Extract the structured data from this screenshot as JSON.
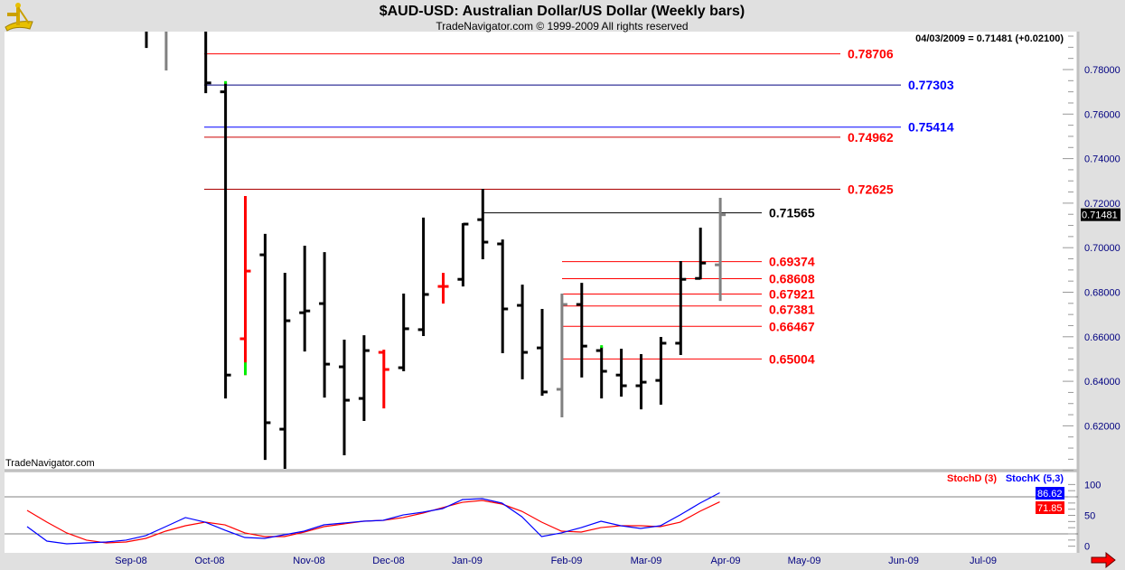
{
  "header": {
    "title": "$AUD-USD:  Australian Dollar/US Dollar  (Weekly bars)",
    "copyright": "TradeNavigator.com © 1999-2009 All rights reserved",
    "quote": "04/03/2009 = 0.71481 (+0.02100)",
    "watermark": "TradeNavigator.com",
    "logo": "sextant-logo-icon"
  },
  "colors": {
    "up_bar": "#000000",
    "red_bar": "#ff0000",
    "gray_bar": "#808080",
    "marker": "#00ee00",
    "stochK": "#0000ff",
    "stochD": "#ff0000",
    "axis_text": "#000080",
    "blue_level": "#0000ff",
    "red_level": "#ff0000"
  },
  "chart_data": [
    {
      "type": "ohlc",
      "title": "$AUD-USD:  Australian Dollar/US Dollar  (Weekly bars)",
      "ylim": [
        0.597,
        0.797
      ],
      "yticks": [
        "0.62000",
        "0.64000",
        "0.66000",
        "0.68000",
        "0.70000",
        "0.72000",
        "0.74000",
        "0.76000",
        "0.78000"
      ],
      "xtick_labels": [
        "Sep-08",
        "Oct-08",
        "Nov-08",
        "Dec-08",
        "Jan-09",
        "Feb-09",
        "Mar-09",
        "Apr-09",
        "May-09",
        "Jun-09",
        "Jul-09"
      ],
      "last_price": "0.71481",
      "bars": [
        {
          "o": 0.805,
          "h": 0.81,
          "l": 0.7897,
          "c": 0.8,
          "color": "black"
        },
        {
          "o": 0.8,
          "h": 0.805,
          "l": 0.7796,
          "c": 0.8,
          "color": "gray"
        },
        {
          "o": 0.81,
          "h": 0.815,
          "l": 0.798,
          "c": 0.805,
          "color": "black"
        },
        {
          "o": 0.8,
          "h": 0.81,
          "l": 0.7694,
          "c": 0.774,
          "color": "black"
        },
        {
          "o": 0.77,
          "h": 0.774,
          "l": 0.6323,
          "c": 0.6428,
          "color": "black",
          "marker": "high"
        },
        {
          "o": 0.6591,
          "h": 0.7232,
          "l": 0.6428,
          "c": 0.6895,
          "color": "red",
          "marker": "low"
        },
        {
          "o": 0.6968,
          "h": 0.7062,
          "l": 0.6047,
          "c": 0.6214,
          "color": "black"
        },
        {
          "o": 0.6185,
          "h": 0.6887,
          "l": 0.6006,
          "c": 0.6672,
          "color": "black"
        },
        {
          "o": 0.6708,
          "h": 0.7009,
          "l": 0.6534,
          "c": 0.6716,
          "color": "black"
        },
        {
          "o": 0.6749,
          "h": 0.698,
          "l": 0.6327,
          "c": 0.6477,
          "color": "black"
        },
        {
          "o": 0.6465,
          "h": 0.6587,
          "l": 0.6068,
          "c": 0.6315,
          "color": "black"
        },
        {
          "o": 0.6323,
          "h": 0.6607,
          "l": 0.6222,
          "c": 0.6538,
          "color": "black"
        },
        {
          "o": 0.653,
          "h": 0.6542,
          "l": 0.6278,
          "c": 0.6453,
          "color": "red"
        },
        {
          "o": 0.6461,
          "h": 0.6794,
          "l": 0.6445,
          "c": 0.6636,
          "color": "black"
        },
        {
          "o": 0.6632,
          "h": 0.7135,
          "l": 0.6603,
          "c": 0.679,
          "color": "black"
        },
        {
          "o": 0.6826,
          "h": 0.6887,
          "l": 0.6749,
          "c": 0.6826,
          "color": "red"
        },
        {
          "o": 0.6858,
          "h": 0.711,
          "l": 0.6826,
          "c": 0.7106,
          "color": "black"
        },
        {
          "o": 0.7126,
          "h": 0.7264,
          "l": 0.6948,
          "c": 0.7025,
          "color": "black"
        },
        {
          "o": 0.7017,
          "h": 0.7037,
          "l": 0.6526,
          "c": 0.6725,
          "color": "black"
        },
        {
          "o": 0.6741,
          "h": 0.6834,
          "l": 0.6409,
          "c": 0.653,
          "color": "black"
        },
        {
          "o": 0.655,
          "h": 0.6725,
          "l": 0.6335,
          "c": 0.6352,
          "color": "black"
        },
        {
          "o": 0.6364,
          "h": 0.6794,
          "l": 0.6238,
          "c": 0.6745,
          "color": "gray"
        },
        {
          "o": 0.6745,
          "h": 0.6842,
          "l": 0.6417,
          "c": 0.6558,
          "color": "black"
        },
        {
          "o": 0.6538,
          "h": 0.6554,
          "l": 0.6323,
          "c": 0.6445,
          "color": "black",
          "marker": "high"
        },
        {
          "o": 0.6428,
          "h": 0.6546,
          "l": 0.6331,
          "c": 0.638,
          "color": "black"
        },
        {
          "o": 0.638,
          "h": 0.6522,
          "l": 0.6274,
          "c": 0.6396,
          "color": "black"
        },
        {
          "o": 0.6404,
          "h": 0.6599,
          "l": 0.6295,
          "c": 0.6571,
          "color": "black"
        },
        {
          "o": 0.6571,
          "h": 0.694,
          "l": 0.6518,
          "c": 0.6858,
          "color": "black"
        },
        {
          "o": 0.6862,
          "h": 0.709,
          "l": 0.6858,
          "c": 0.6931,
          "color": "black"
        },
        {
          "o": 0.6923,
          "h": 0.7224,
          "l": 0.6761,
          "c": 0.71481,
          "color": "gray"
        }
      ],
      "levels": [
        {
          "label": "0.78706",
          "value": 0.78706,
          "color": "#ff0000",
          "label_color": "#ff0000"
        },
        {
          "label": "0.77303",
          "value": 0.77303,
          "color": "#000080",
          "label_color": "#0000ff"
        },
        {
          "label": "0.75414",
          "value": 0.75414,
          "color": "#0000ff",
          "label_color": "#0000ff"
        },
        {
          "label": "0.74962",
          "value": 0.74962,
          "color": "#cc0000",
          "label_color": "#ff0000"
        },
        {
          "label": "0.72625",
          "value": 0.72625,
          "color": "#aa0000",
          "label_color": "#ff0000"
        },
        {
          "label": "0.71565",
          "value": 0.71565,
          "color": "#000000",
          "label_color": "#000000"
        },
        {
          "label": "0.69374",
          "value": 0.69374,
          "color": "#ff0000",
          "label_color": "#ff0000"
        },
        {
          "label": "0.68608",
          "value": 0.68608,
          "color": "#ff0000",
          "label_color": "#ff0000"
        },
        {
          "label": "0.67921",
          "value": 0.67921,
          "color": "#ff0000",
          "label_color": "#ff0000"
        },
        {
          "label": "0.67381",
          "value": 0.67381,
          "color": "#ff0000",
          "label_color": "#ff0000"
        },
        {
          "label": "0.66467",
          "value": 0.66467,
          "color": "#ff0000",
          "label_color": "#ff0000"
        },
        {
          "label": "0.65004",
          "value": 0.65004,
          "color": "#ff0000",
          "label_color": "#ff0000"
        }
      ]
    },
    {
      "type": "line",
      "ylim": [
        0,
        100
      ],
      "yticks": [
        "0",
        "50",
        "100"
      ],
      "reference_lines": [
        20,
        80
      ],
      "legend": [
        "StochD (3)",
        "StochK (5,3)"
      ],
      "legend_placement": "top-right",
      "series": [
        {
          "name": "StochK (5,3)",
          "last": "86.62",
          "values": [
            31.7,
            8.3,
            3.9,
            5.4,
            6.8,
            9.8,
            17.1,
            31.7,
            46.4,
            39,
            25.9,
            14.1,
            12.7,
            18.5,
            24.4,
            34.6,
            37.6,
            40.5,
            42,
            50.7,
            55.1,
            61,
            75.6,
            77.1,
            69.8,
            47.8,
            15.6,
            21.5,
            30.2,
            40.5,
            33.2,
            28.8,
            33.2,
            50.7,
            69.8,
            86.62
          ]
        },
        {
          "name": "StochD (3)",
          "last": "71.85",
          "values": [
            58.1,
            39,
            21.5,
            9.8,
            5.4,
            6.8,
            12.7,
            24.4,
            33.2,
            39,
            34.6,
            21.5,
            15.6,
            15.6,
            22.9,
            31.7,
            36.1,
            40.5,
            42,
            46.4,
            53.7,
            62.5,
            71.2,
            74.2,
            68.3,
            56.6,
            39,
            24.4,
            22.9,
            30.2,
            33.2,
            33.2,
            31.7,
            39,
            56.6,
            71.85
          ]
        }
      ]
    }
  ]
}
